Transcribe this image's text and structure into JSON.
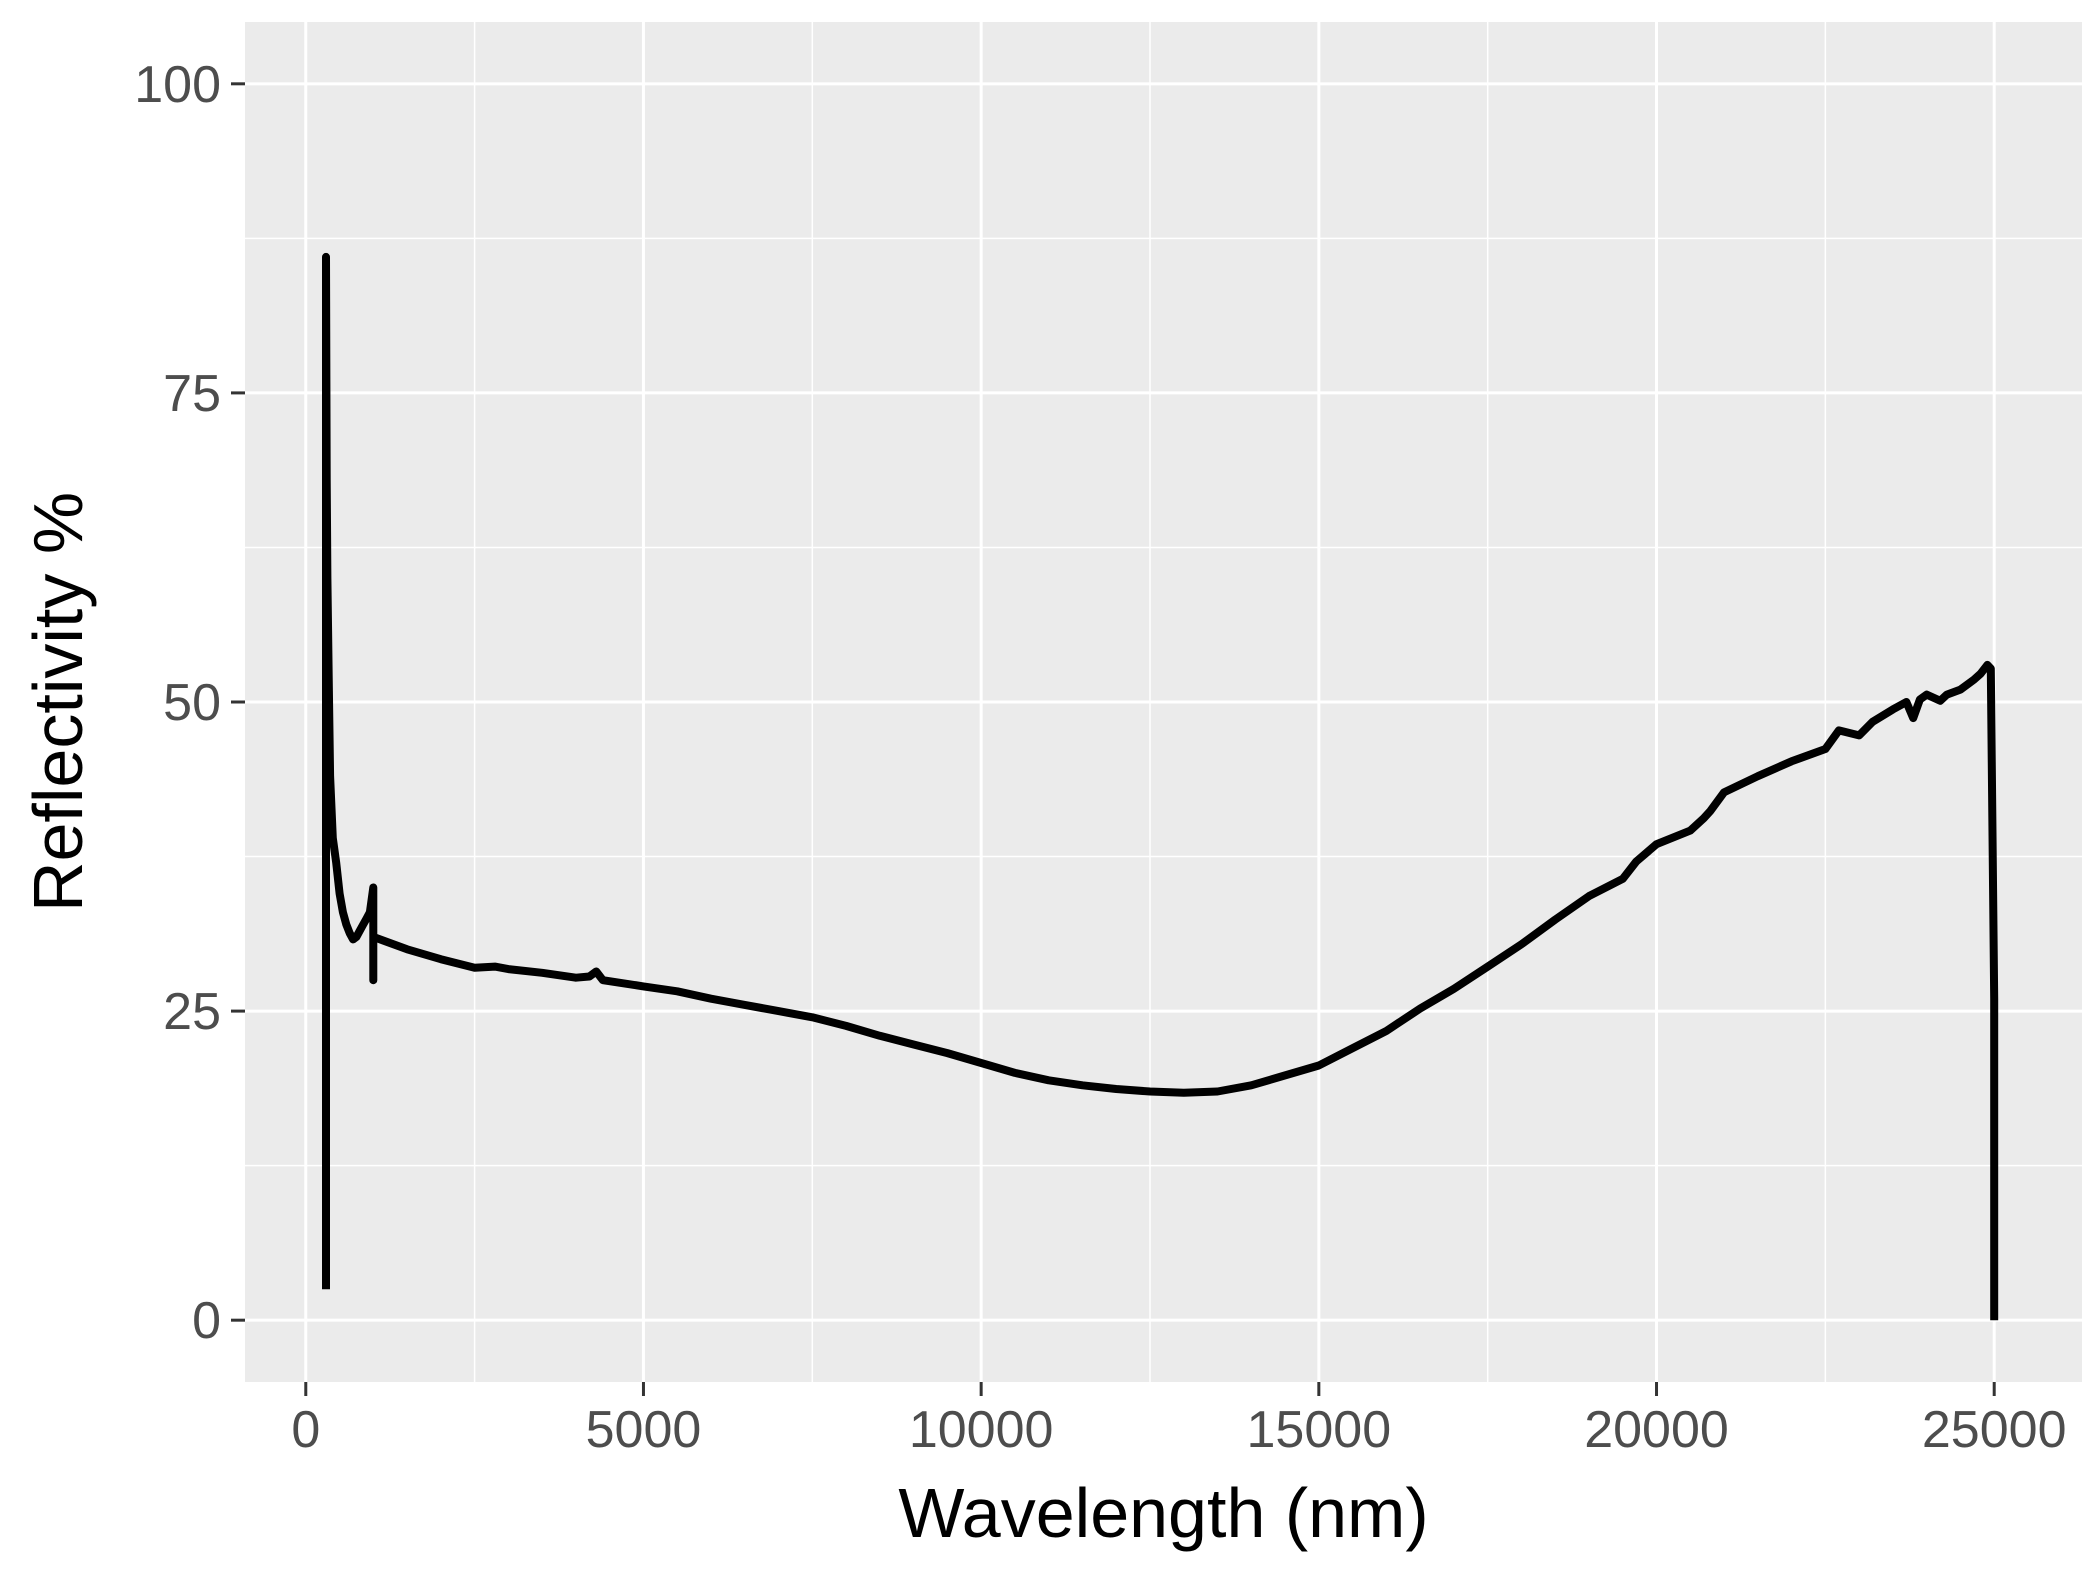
{
  "chart_data": {
    "type": "line",
    "title": "",
    "xlabel": "Wavelength (nm)",
    "ylabel": "Reflectivity %",
    "xlim": [
      -900,
      26300
    ],
    "ylim": [
      -5,
      105
    ],
    "x_ticks": [
      0,
      5000,
      10000,
      15000,
      20000,
      25000
    ],
    "x_tick_labels": [
      "0",
      "5000",
      "10000",
      "15000",
      "20000",
      "25000"
    ],
    "y_ticks": [
      0,
      25,
      50,
      75,
      100
    ],
    "y_tick_labels": [
      "0",
      "25",
      "50",
      "75",
      "100"
    ],
    "grid": true,
    "legend": "none",
    "colors": {
      "panel_background": "#ebebeb",
      "grid": "#ffffff",
      "line": "#000000",
      "tick_label": "#4d4d4d",
      "axis_title": "#000000"
    },
    "series": [
      {
        "x": [
          300,
          300,
          310,
          320,
          340,
          360,
          400,
          450,
          500,
          550,
          600,
          650,
          700,
          750,
          800,
          850,
          900,
          950,
          1000,
          1000,
          1000,
          1100,
          1500,
          2000,
          2500,
          2800,
          3000,
          3500,
          4000,
          4200,
          4300,
          4400,
          5000,
          5500,
          6000,
          6500,
          7000,
          7500,
          8000,
          8500,
          9000,
          9500,
          10000,
          10500,
          11000,
          11500,
          12000,
          12500,
          13000,
          13500,
          14000,
          14500,
          15000,
          15500,
          16000,
          16500,
          17000,
          17500,
          18000,
          18500,
          19000,
          19500,
          19700,
          20000,
          20500,
          20700,
          20800,
          21000,
          21500,
          22000,
          22500,
          22700,
          23000,
          23200,
          23500,
          23700,
          23800,
          23900,
          24000,
          24200,
          24300,
          24500,
          24700,
          24800,
          24900,
          24950,
          25000,
          25000
        ],
        "y": [
          2.5,
          86,
          68,
          60,
          52,
          44,
          39,
          37,
          34.5,
          33,
          32,
          31.3,
          30.8,
          31,
          31.5,
          32,
          32.5,
          33,
          35,
          27.5,
          31,
          30.8,
          30,
          29.2,
          28.5,
          28.6,
          28.4,
          28.1,
          27.7,
          27.8,
          28.2,
          27.5,
          27,
          26.6,
          26,
          25.5,
          25,
          24.5,
          23.8,
          23,
          22.3,
          21.6,
          20.8,
          20,
          19.4,
          19,
          18.7,
          18.5,
          18.4,
          18.5,
          19,
          19.8,
          20.6,
          22,
          23.4,
          25.2,
          26.8,
          28.6,
          30.4,
          32.4,
          34.3,
          35.7,
          37.1,
          38.5,
          39.6,
          40.6,
          41.2,
          42.7,
          44,
          45.2,
          46.2,
          47.7,
          47.3,
          48.4,
          49.4,
          50,
          48.7,
          50.2,
          50.6,
          50.1,
          50.6,
          51,
          51.8,
          52.3,
          53,
          52.7,
          26,
          0
        ]
      }
    ]
  }
}
